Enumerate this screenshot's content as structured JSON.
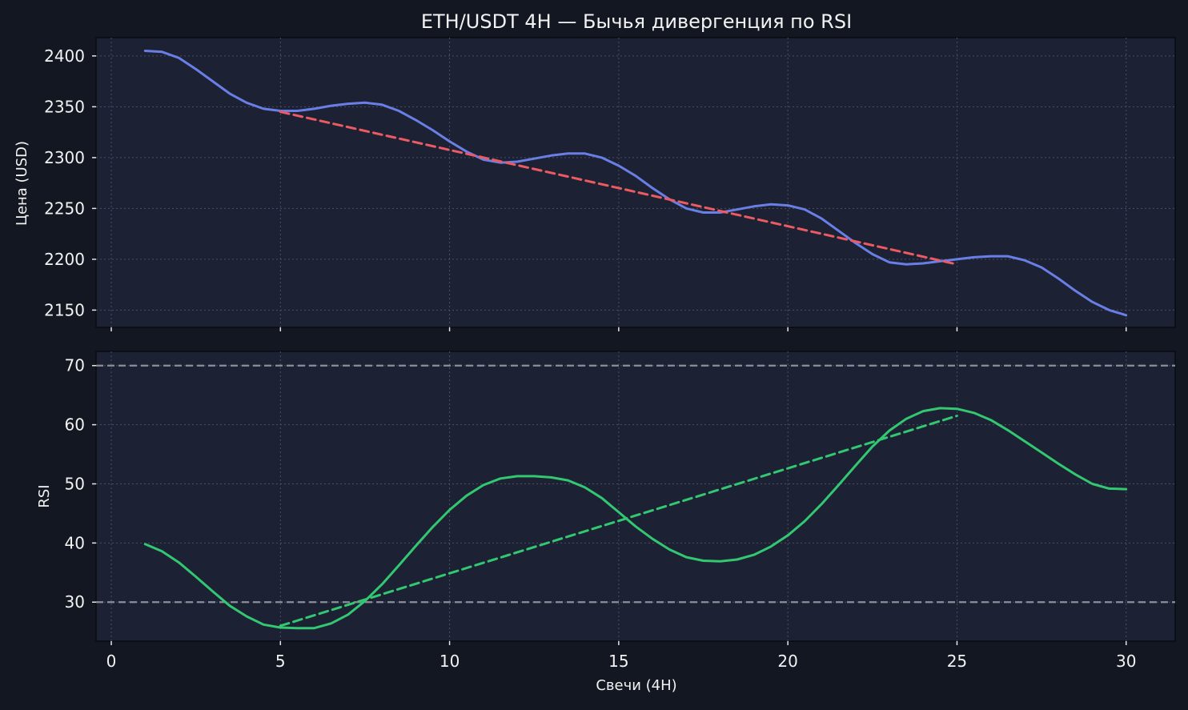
{
  "chart_data": [
    {
      "type": "line",
      "title": "ETH/USDT 4H — Бычья дивергенция по RSI",
      "xlabel": "",
      "ylabel": "Цена (USD)",
      "xlim": [
        -0.45,
        31.45
      ],
      "ylim": [
        2133,
        2418
      ],
      "yticks": [
        2150,
        2200,
        2250,
        2300,
        2350,
        2400
      ],
      "grid": true,
      "colors": {
        "line": "#6a7fe6",
        "trend": "#ec5a63"
      },
      "series": [
        {
          "style": "solid",
          "x": [
            1,
            1.5,
            2,
            2.5,
            3,
            3.5,
            4,
            4.5,
            5,
            5.5,
            6,
            6.5,
            7,
            7.5,
            8,
            8.5,
            9,
            9.5,
            10,
            10.5,
            11,
            11.5,
            12,
            12.5,
            13,
            13.5,
            14,
            14.5,
            15,
            15.5,
            16,
            16.5,
            17,
            17.5,
            18,
            18.5,
            19,
            19.5,
            20,
            20.5,
            21,
            21.5,
            22,
            22.5,
            23,
            23.5,
            24,
            24.5,
            25,
            25.5,
            26,
            26.5,
            27,
            27.5,
            28,
            28.5,
            29,
            29.5,
            30
          ],
          "y": [
            2405,
            2404,
            2398,
            2387,
            2375,
            2363,
            2354,
            2348,
            2346,
            2346,
            2348,
            2351,
            2353,
            2354,
            2352,
            2346,
            2337,
            2327,
            2316,
            2306,
            2298,
            2295,
            2296,
            2299,
            2302,
            2304,
            2304,
            2300,
            2292,
            2282,
            2270,
            2259,
            2250,
            2246,
            2246,
            2249,
            2252,
            2254,
            2253,
            2249,
            2240,
            2228,
            2216,
            2205,
            2197,
            2195,
            2196,
            2198,
            2200,
            2202,
            2203,
            2203,
            2199,
            2192,
            2181,
            2169,
            2158,
            2150,
            2145
          ]
        },
        {
          "style": "dashed",
          "x": [
            5,
            25
          ],
          "y": [
            2345,
            2195
          ]
        }
      ]
    },
    {
      "type": "line",
      "title": "",
      "xlabel": "Свечи (4H)",
      "ylabel": "RSI",
      "xlim": [
        -0.45,
        31.45
      ],
      "ylim": [
        23.4,
        72.4
      ],
      "yticks": [
        30,
        40,
        50,
        60,
        70
      ],
      "xticks": [
        0,
        5,
        10,
        15,
        20,
        25,
        30
      ],
      "reference_lines": [
        70,
        30
      ],
      "grid": true,
      "colors": {
        "line": "#33c772",
        "trend": "#33c772",
        "reference": "#8c8f96"
      },
      "series": [
        {
          "style": "solid",
          "x": [
            1,
            1.5,
            2,
            2.5,
            3,
            3.5,
            4,
            4.5,
            5,
            5.5,
            6,
            6.5,
            7,
            7.5,
            8,
            8.5,
            9,
            9.5,
            10,
            10.5,
            11,
            11.5,
            12,
            12.5,
            13,
            13.5,
            14,
            14.5,
            15,
            15.5,
            16,
            16.5,
            17,
            17.5,
            18,
            18.5,
            19,
            19.5,
            20,
            20.5,
            21,
            21.5,
            22,
            22.5,
            23,
            23.5,
            24,
            24.5,
            25,
            25.5,
            26,
            26.5,
            27,
            27.5,
            28,
            28.5,
            29,
            29.5,
            30
          ],
          "y": [
            39.8,
            38.6,
            36.7,
            34.3,
            31.8,
            29.4,
            27.6,
            26.2,
            25.7,
            25.6,
            25.6,
            26.4,
            27.9,
            30.2,
            33.0,
            36.2,
            39.5,
            42.7,
            45.6,
            48.0,
            49.8,
            50.9,
            51.3,
            51.3,
            51.1,
            50.6,
            49.4,
            47.6,
            45.2,
            42.8,
            40.7,
            38.9,
            37.6,
            37.0,
            36.9,
            37.2,
            38.0,
            39.4,
            41.3,
            43.7,
            46.6,
            49.8,
            53.1,
            56.3,
            59.0,
            61.0,
            62.3,
            62.8,
            62.7,
            62.0,
            60.8,
            59.1,
            57.2,
            55.3,
            53.4,
            51.6,
            50.0,
            49.2,
            49.1
          ]
        },
        {
          "style": "dashed",
          "x": [
            5,
            25
          ],
          "y": [
            26,
            61.5
          ]
        }
      ]
    }
  ]
}
